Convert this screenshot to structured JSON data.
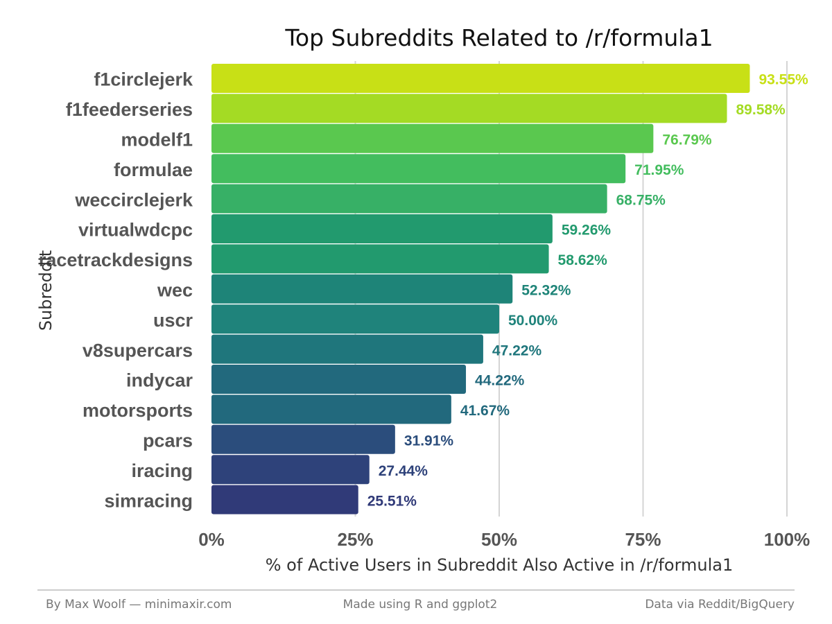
{
  "chart_data": {
    "type": "bar",
    "orientation": "horizontal",
    "title": "Top Subreddits Related to /r/formula1",
    "xlabel": "% of Active Users in Subreddit Also Active in /r/formula1",
    "ylabel": "Subreddit",
    "xlim": [
      0,
      100
    ],
    "x_ticks": [
      {
        "value": 0,
        "label": "0%"
      },
      {
        "value": 25,
        "label": "25%"
      },
      {
        "value": 50,
        "label": "50%"
      },
      {
        "value": 75,
        "label": "75%"
      },
      {
        "value": 100,
        "label": "100%"
      }
    ],
    "grid": "vertical major lines",
    "legend": "none",
    "categories": [
      "f1circlejerk",
      "f1feederseries",
      "modelf1",
      "formulae",
      "weccirclejerk",
      "virtualwdcpc",
      "racetrackdesigns",
      "wec",
      "uscr",
      "v8supercars",
      "indycar",
      "motorsports",
      "pcars",
      "iracing",
      "simracing"
    ],
    "values": [
      93.55,
      89.58,
      76.79,
      71.95,
      68.75,
      59.26,
      58.62,
      52.32,
      50.0,
      47.22,
      44.22,
      41.67,
      31.91,
      27.44,
      25.51
    ],
    "value_labels": [
      "93.55%",
      "89.58%",
      "76.79%",
      "71.95%",
      "68.75%",
      "59.26%",
      "58.62%",
      "52.32%",
      "50.00%",
      "47.22%",
      "44.22%",
      "41.67%",
      "31.91%",
      "27.44%",
      "25.51%"
    ],
    "colors": [
      "#c8e016",
      "#a4db24",
      "#5ac84f",
      "#43bd5e",
      "#37b066",
      "#229a6e",
      "#229a6e",
      "#1e8478",
      "#1f837b",
      "#1f767c",
      "#22697d",
      "#22697d",
      "#2b4d7c",
      "#2e427a",
      "#303a78"
    ]
  },
  "footer": {
    "left": "By Max Woolf — minimaxir.com",
    "center": "Made using R and ggplot2",
    "right": "Data via Reddit/BigQuery"
  }
}
